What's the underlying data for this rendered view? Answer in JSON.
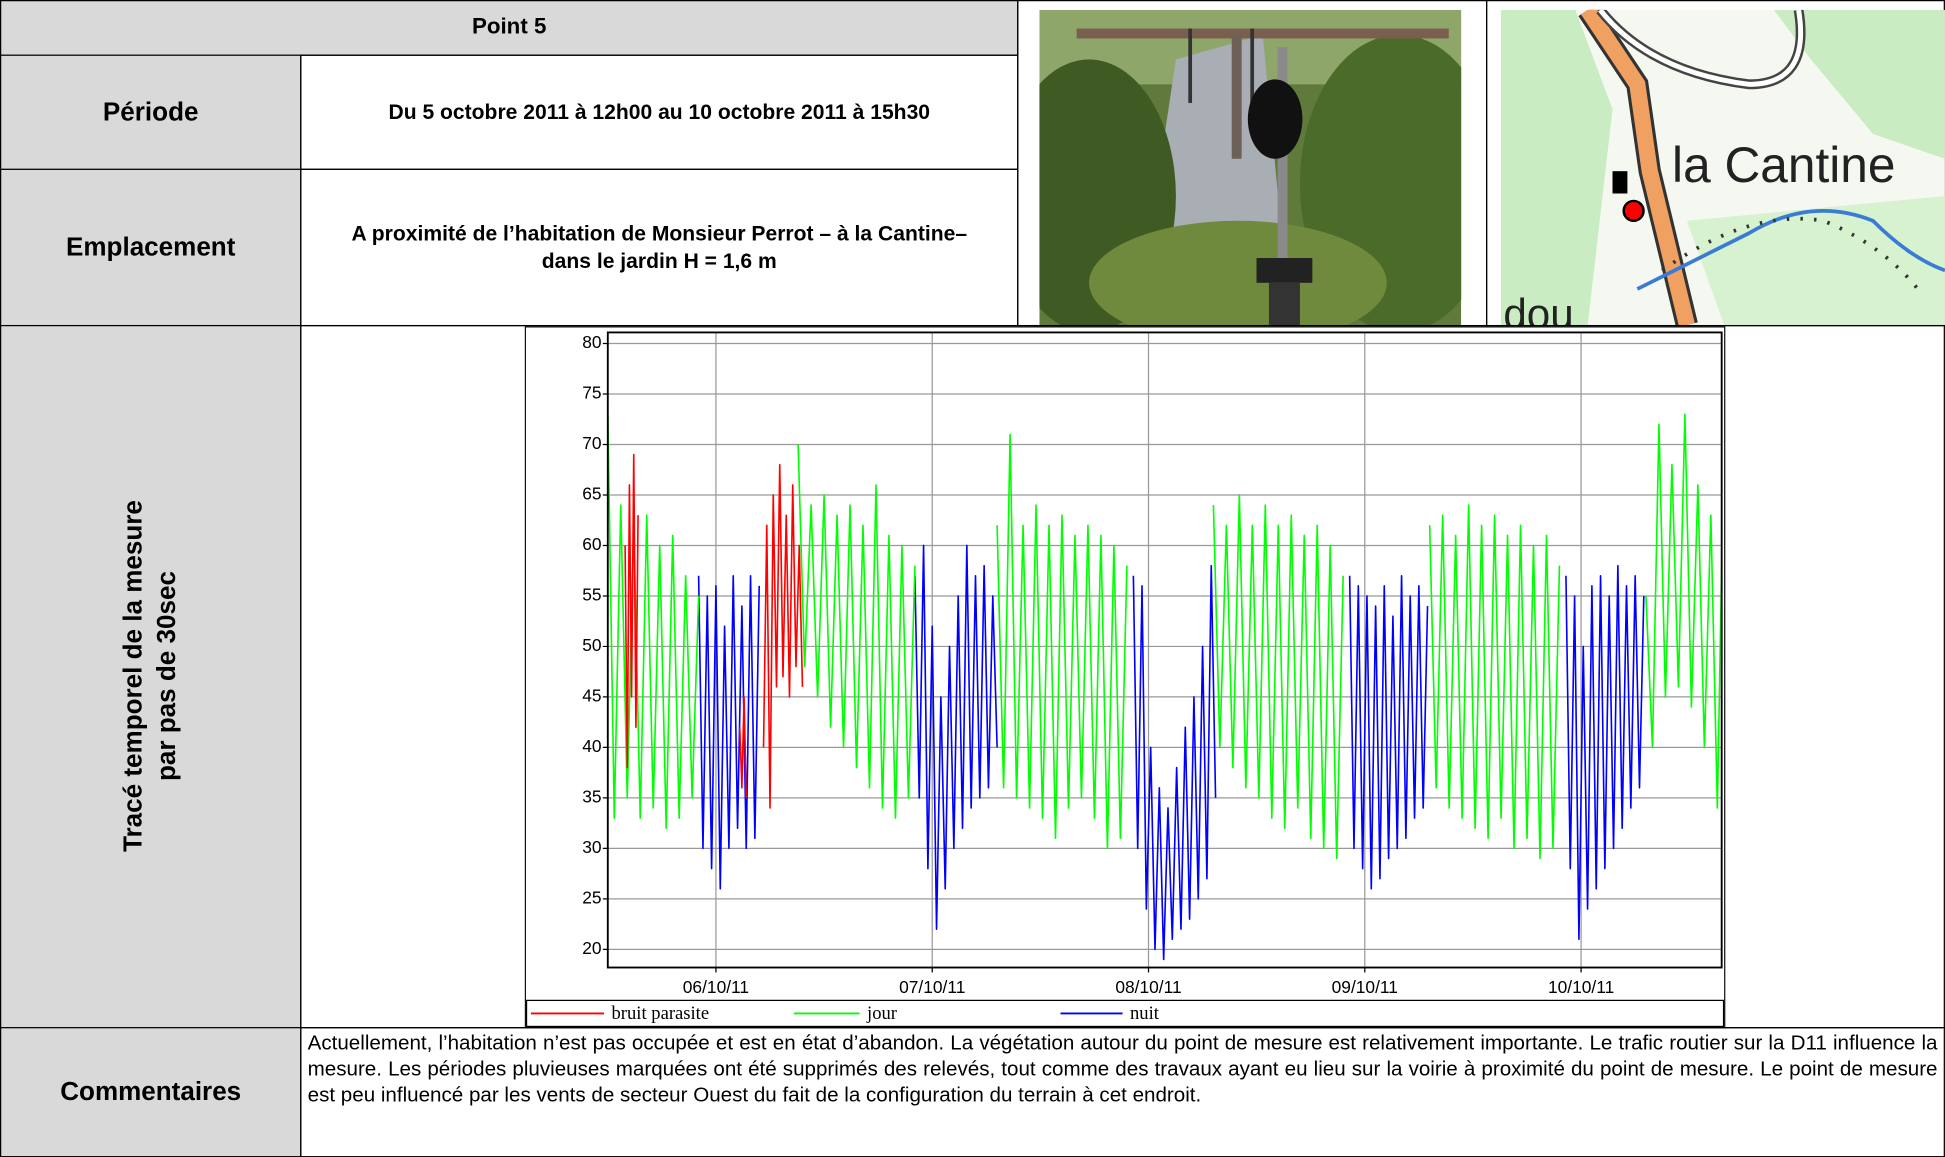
{
  "header": {
    "title": "Point 5"
  },
  "table": {
    "periode": {
      "label": "Période",
      "value": "Du 5 octobre 2011 à 12h00 au 10 octobre 2011 à 15h30"
    },
    "emplacement": {
      "label": "Emplacement",
      "value": "A proximité de l’habitation de Monsieur Perrot – à la Cantine– dans le jardin H = 1,6 m"
    },
    "trace": {
      "label": [
        "Tracé temporel de la mesure",
        "par pas de 30sec"
      ]
    },
    "commentaires": {
      "label": "Commentaires",
      "value": "Actuellement, l’habitation n’est pas occupée et est en état d’abandon. La végétation autour du point de mesure est relativement importante. Le trafic routier sur la D11 influence la mesure. Les périodes pluvieuses marquées ont été supprimés des relevés, tout comme des travaux ayant eu lieu sur la voirie à proximité du point de mesure. Le point de mesure est peu influencé par les vents de secteur Ouest du fait de la configuration du terrain à cet endroit."
    }
  },
  "map": {
    "labels": [
      "la Cantine",
      "dou"
    ]
  },
  "chart_data": {
    "type": "line",
    "xlim": [
      5.5,
      10.65
    ],
    "ylim": [
      18.2,
      81.1
    ],
    "xticks": [
      {
        "value": 6,
        "label": "06/10/11"
      },
      {
        "value": 7,
        "label": "07/10/11"
      },
      {
        "value": 8,
        "label": "08/10/11"
      },
      {
        "value": 9,
        "label": "09/10/11"
      },
      {
        "value": 10,
        "label": "10/10/11"
      }
    ],
    "yticks": [
      20,
      25,
      30,
      35,
      40,
      45,
      50,
      55,
      60,
      65,
      70,
      75,
      80
    ],
    "grid": true,
    "legend": "bottom",
    "series": [
      {
        "name": "bruit parasite",
        "color": "#ff0000",
        "x": [
          5.58,
          5.59,
          5.6,
          5.61,
          5.62,
          5.63,
          5.64,
          5.65,
          6.11,
          6.12,
          6.13,
          6.14,
          6.15,
          6.22,
          6.235,
          6.25,
          6.265,
          6.28,
          6.295,
          6.31,
          6.325,
          6.34,
          6.355,
          6.37,
          6.385,
          6.4
        ],
        "values": [
          60,
          38,
          66,
          45,
          69,
          42,
          63,
          null,
          42,
          36,
          45,
          35,
          null,
          40,
          62,
          34,
          65,
          46,
          68,
          47,
          63,
          45,
          66,
          48,
          60,
          46
        ]
      },
      {
        "name": "jour",
        "color": "#00ff00",
        "x": [
          5.5,
          5.53,
          5.56,
          5.59,
          5.62,
          5.65,
          5.68,
          5.71,
          5.74,
          5.77,
          5.8,
          5.83,
          5.86,
          5.89,
          5.92,
          5.95,
          6.38,
          6.41,
          6.44,
          6.47,
          6.5,
          6.53,
          6.56,
          6.59,
          6.62,
          6.65,
          6.68,
          6.71,
          6.74,
          6.77,
          6.8,
          6.83,
          6.86,
          6.89,
          6.92,
          6.95,
          7.3,
          7.33,
          7.36,
          7.39,
          7.42,
          7.45,
          7.48,
          7.51,
          7.54,
          7.57,
          7.6,
          7.63,
          7.66,
          7.69,
          7.72,
          7.75,
          7.78,
          7.81,
          7.84,
          7.87,
          7.9,
          7.93,
          8.3,
          8.33,
          8.36,
          8.39,
          8.42,
          8.45,
          8.48,
          8.51,
          8.54,
          8.57,
          8.6,
          8.63,
          8.66,
          8.69,
          8.72,
          8.75,
          8.78,
          8.81,
          8.84,
          8.87,
          8.9,
          8.93,
          9.3,
          9.33,
          9.36,
          9.39,
          9.42,
          9.45,
          9.48,
          9.51,
          9.54,
          9.57,
          9.6,
          9.63,
          9.66,
          9.69,
          9.72,
          9.75,
          9.78,
          9.81,
          9.84,
          9.87,
          9.9,
          9.93,
          10.3,
          10.33,
          10.36,
          10.39,
          10.42,
          10.45,
          10.48,
          10.51,
          10.54,
          10.57,
          10.6,
          10.63,
          10.65
        ],
        "values": [
          73,
          33,
          64,
          35,
          62,
          33,
          63,
          34,
          60,
          32,
          61,
          33,
          57,
          35,
          55,
          null,
          70,
          48,
          64,
          45,
          65,
          42,
          63,
          40,
          64,
          38,
          62,
          36,
          66,
          34,
          61,
          33,
          60,
          35,
          58,
          null,
          62,
          36,
          71,
          35,
          62,
          34,
          64,
          33,
          62,
          31,
          63,
          34,
          61,
          35,
          62,
          33,
          61,
          30,
          60,
          31,
          58,
          null,
          64,
          40,
          62,
          38,
          65,
          36,
          62,
          35,
          64,
          33,
          62,
          32,
          63,
          34,
          61,
          31,
          62,
          30,
          60,
          29,
          57,
          null,
          62,
          36,
          63,
          34,
          61,
          33,
          64,
          32,
          62,
          31,
          63,
          33,
          61,
          30,
          62,
          31,
          60,
          29,
          61,
          30,
          58,
          null,
          55,
          40,
          72,
          45,
          68,
          46,
          73,
          44,
          66,
          40,
          63,
          34,
          58
        ]
      },
      {
        "name": "nuit",
        "color": "#0000ff",
        "x": [
          5.92,
          5.94,
          5.96,
          5.98,
          6.0,
          6.02,
          6.04,
          6.06,
          6.08,
          6.1,
          6.12,
          6.14,
          6.16,
          6.18,
          6.2,
          6.22,
          6.92,
          6.94,
          6.96,
          6.98,
          7.0,
          7.02,
          7.04,
          7.06,
          7.08,
          7.1,
          7.12,
          7.14,
          7.16,
          7.18,
          7.2,
          7.22,
          7.24,
          7.26,
          7.28,
          7.3,
          7.32,
          7.93,
          7.95,
          7.97,
          7.99,
          8.01,
          8.03,
          8.05,
          8.07,
          8.09,
          8.11,
          8.13,
          8.15,
          8.17,
          8.19,
          8.21,
          8.23,
          8.25,
          8.27,
          8.29,
          8.31,
          8.33,
          8.93,
          8.95,
          8.97,
          8.99,
          9.01,
          9.03,
          9.05,
          9.07,
          9.09,
          9.11,
          9.13,
          9.15,
          9.17,
          9.19,
          9.21,
          9.23,
          9.25,
          9.27,
          9.29,
          9.31,
          9.93,
          9.95,
          9.97,
          9.99,
          10.01,
          10.03,
          10.05,
          10.07,
          10.09,
          10.11,
          10.13,
          10.15,
          10.17,
          10.19,
          10.21,
          10.23,
          10.25,
          10.27,
          10.29
        ],
        "values": [
          57,
          30,
          55,
          28,
          56,
          26,
          52,
          30,
          57,
          32,
          54,
          30,
          57,
          31,
          56,
          null,
          57,
          35,
          60,
          28,
          52,
          22,
          45,
          26,
          50,
          30,
          55,
          32,
          60,
          34,
          57,
          35,
          58,
          36,
          55,
          40,
          null,
          57,
          30,
          56,
          24,
          40,
          20,
          36,
          19,
          34,
          21,
          38,
          22,
          42,
          23,
          45,
          25,
          50,
          27,
          58,
          35,
          null,
          57,
          30,
          56,
          28,
          55,
          26,
          54,
          27,
          56,
          29,
          53,
          30,
          57,
          31,
          55,
          33,
          56,
          34,
          54,
          null,
          57,
          28,
          55,
          21,
          50,
          24,
          56,
          26,
          57,
          28,
          55,
          30,
          58,
          32,
          56,
          34,
          57,
          36,
          55
        ]
      }
    ]
  }
}
